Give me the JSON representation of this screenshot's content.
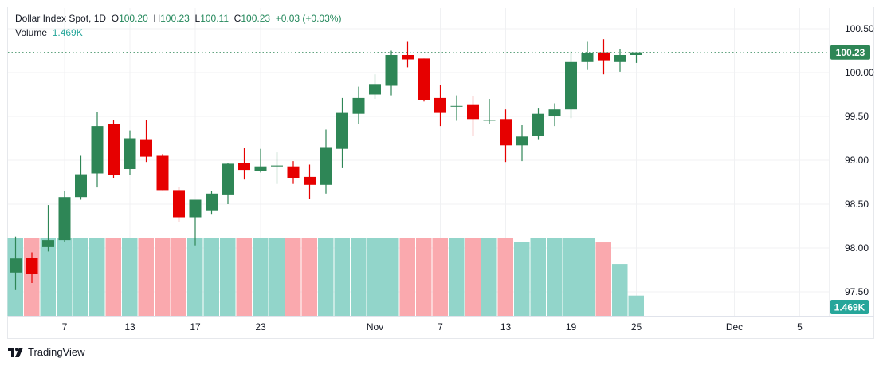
{
  "header": {
    "symbol": "Dollar Index Spot, 1D",
    "open_label": "O",
    "open": "100.20",
    "high_label": "H",
    "high": "100.23",
    "low_label": "L",
    "low": "100.11",
    "close_label": "C",
    "close": "100.23",
    "change": "+0.03 (+0.03%)",
    "volume_label": "Volume",
    "volume": "1.469K"
  },
  "branding": {
    "name": "TradingView",
    "icon": "tradingview-logo-icon"
  },
  "colors": {
    "up": "#2e8656",
    "down": "#e60000",
    "vol_up": "#92d5ca",
    "vol_down": "#faa9ae",
    "last_price": "#2e8656",
    "volume_badge": "#26a69a",
    "grid": "#f0f1f3"
  },
  "chart_data": {
    "type": "candlestick",
    "title": "Dollar Index Spot, 1D",
    "price_axis": {
      "ticks": [
        "100.50",
        "100.00",
        "99.50",
        "99.00",
        "98.50",
        "98.00",
        "97.50"
      ],
      "range": [
        97.3,
        100.55
      ]
    },
    "time_axis": {
      "ticks": [
        "7",
        "13",
        "17",
        "23",
        "Nov",
        "7",
        "13",
        "19",
        "25",
        "Dec",
        "5"
      ]
    },
    "grid": true,
    "last_price_label": "100.23",
    "last_volume_label": "1.469K",
    "candles": [
      {
        "o": 97.72,
        "h": 98.13,
        "l": 97.52,
        "c": 97.88,
        "v": 5.69
      },
      {
        "o": 97.89,
        "h": 97.95,
        "l": 97.6,
        "c": 97.7,
        "v": 5.69
      },
      {
        "o": 98.01,
        "h": 98.49,
        "l": 97.96,
        "c": 98.09,
        "v": 5.69
      },
      {
        "o": 98.09,
        "h": 98.65,
        "l": 98.07,
        "c": 98.58,
        "v": 5.69
      },
      {
        "o": 98.58,
        "h": 99.05,
        "l": 98.55,
        "c": 98.84,
        "v": 5.69
      },
      {
        "o": 98.85,
        "h": 99.55,
        "l": 98.69,
        "c": 99.39,
        "v": 5.69
      },
      {
        "o": 99.41,
        "h": 99.46,
        "l": 98.8,
        "c": 98.83,
        "v": 5.69
      },
      {
        "o": 98.9,
        "h": 99.34,
        "l": 98.83,
        "c": 99.25,
        "v": 5.64
      },
      {
        "o": 99.24,
        "h": 99.46,
        "l": 98.98,
        "c": 99.04,
        "v": 5.69
      },
      {
        "o": 99.05,
        "h": 99.07,
        "l": 98.66,
        "c": 98.66,
        "v": 5.69
      },
      {
        "o": 98.66,
        "h": 98.7,
        "l": 98.3,
        "c": 98.35,
        "v": 5.69
      },
      {
        "o": 98.35,
        "h": 98.55,
        "l": 98.03,
        "c": 98.55,
        "v": 5.69
      },
      {
        "o": 98.43,
        "h": 98.65,
        "l": 98.38,
        "c": 98.62,
        "v": 5.69
      },
      {
        "o": 98.61,
        "h": 98.97,
        "l": 98.5,
        "c": 98.96,
        "v": 5.69
      },
      {
        "o": 98.97,
        "h": 99.14,
        "l": 98.78,
        "c": 98.89,
        "v": 5.69
      },
      {
        "o": 98.88,
        "h": 99.13,
        "l": 98.86,
        "c": 98.93,
        "v": 5.69
      },
      {
        "o": 98.93,
        "h": 99.09,
        "l": 98.73,
        "c": 98.94,
        "v": 5.69
      },
      {
        "o": 98.93,
        "h": 98.99,
        "l": 98.73,
        "c": 98.8,
        "v": 5.64
      },
      {
        "o": 98.81,
        "h": 98.95,
        "l": 98.56,
        "c": 98.72,
        "v": 5.69
      },
      {
        "o": 98.72,
        "h": 99.35,
        "l": 98.62,
        "c": 99.15,
        "v": 5.69
      },
      {
        "o": 99.13,
        "h": 99.71,
        "l": 98.91,
        "c": 99.54,
        "v": 5.69
      },
      {
        "o": 99.53,
        "h": 99.84,
        "l": 99.41,
        "c": 99.71,
        "v": 5.69
      },
      {
        "o": 99.75,
        "h": 99.98,
        "l": 99.7,
        "c": 99.87,
        "v": 5.69
      },
      {
        "o": 99.85,
        "h": 100.25,
        "l": 99.74,
        "c": 100.2,
        "v": 5.69
      },
      {
        "o": 100.2,
        "h": 100.35,
        "l": 100.06,
        "c": 100.15,
        "v": 5.69
      },
      {
        "o": 100.16,
        "h": 100.16,
        "l": 99.67,
        "c": 99.69,
        "v": 5.69
      },
      {
        "o": 99.71,
        "h": 99.86,
        "l": 99.39,
        "c": 99.54,
        "v": 5.64
      },
      {
        "o": 99.62,
        "h": 99.74,
        "l": 99.45,
        "c": 99.62,
        "v": 5.69
      },
      {
        "o": 99.63,
        "h": 99.73,
        "l": 99.28,
        "c": 99.47,
        "v": 5.69
      },
      {
        "o": 99.46,
        "h": 99.7,
        "l": 99.41,
        "c": 99.46,
        "v": 5.69
      },
      {
        "o": 99.47,
        "h": 99.58,
        "l": 98.98,
        "c": 99.17,
        "v": 5.69
      },
      {
        "o": 99.17,
        "h": 99.4,
        "l": 98.99,
        "c": 99.27,
        "v": 5.4
      },
      {
        "o": 99.28,
        "h": 99.59,
        "l": 99.24,
        "c": 99.53,
        "v": 5.69
      },
      {
        "o": 99.5,
        "h": 99.65,
        "l": 99.39,
        "c": 99.58,
        "v": 5.69
      },
      {
        "o": 99.58,
        "h": 100.24,
        "l": 99.48,
        "c": 100.12,
        "v": 5.69
      },
      {
        "o": 100.12,
        "h": 100.35,
        "l": 100.03,
        "c": 100.22,
        "v": 5.69
      },
      {
        "o": 100.23,
        "h": 100.38,
        "l": 99.98,
        "c": 100.14,
        "v": 5.34
      },
      {
        "o": 100.12,
        "h": 100.27,
        "l": 100.01,
        "c": 100.2,
        "v": 3.77
      },
      {
        "o": 100.2,
        "h": 100.23,
        "l": 100.11,
        "c": 100.23,
        "v": 1.469
      }
    ]
  }
}
